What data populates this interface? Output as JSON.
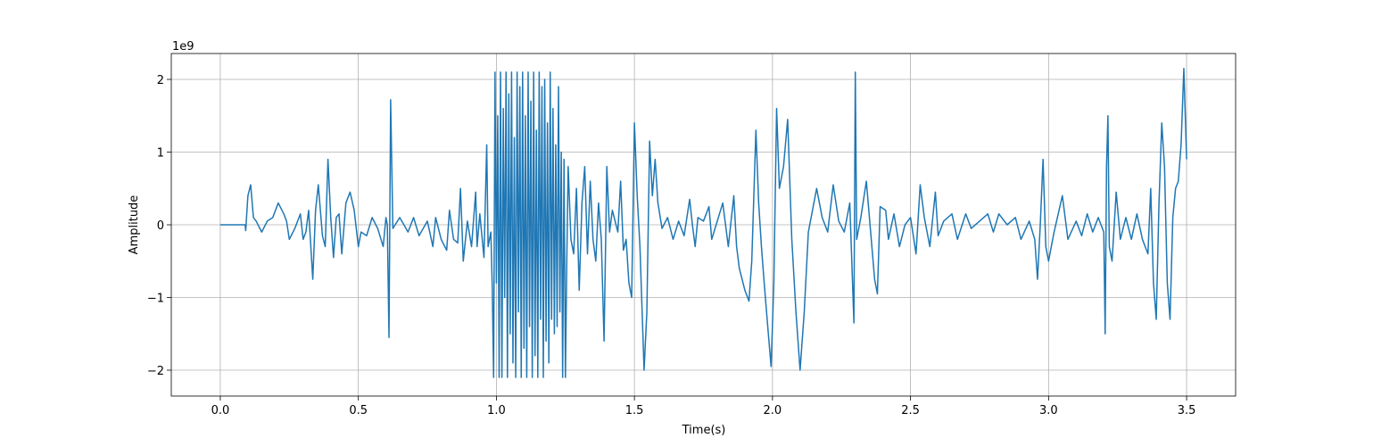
{
  "chart_data": {
    "type": "line",
    "x_label": "Time(s)",
    "y_label": "Amplitude",
    "y_offset_label": "1e9",
    "color": "#1f77b4",
    "grid": true,
    "xlim": [
      -0.1775,
      3.6775
    ],
    "ylim": [
      -2.356,
      2.356
    ],
    "xticks": [
      {
        "value": 0,
        "label": "0.0"
      },
      0.5,
      {
        "value": 1,
        "label": "1.0"
      },
      1.5,
      {
        "value": 2,
        "label": "2.0"
      },
      2.5,
      {
        "value": 3,
        "label": "3.0"
      },
      3.5
    ],
    "yticks": [
      {
        "value": -2,
        "label": "−2"
      },
      {
        "value": -1,
        "label": "−1"
      },
      0,
      1,
      2
    ],
    "x": [
      0,
      0.09,
      0.092,
      0.1,
      0.11,
      0.12,
      0.13,
      0.15,
      0.17,
      0.19,
      0.21,
      0.23,
      0.24,
      0.25,
      0.27,
      0.29,
      0.3,
      0.31,
      0.32,
      0.335,
      0.345,
      0.355,
      0.37,
      0.38,
      0.39,
      0.4,
      0.41,
      0.42,
      0.43,
      0.44,
      0.455,
      0.47,
      0.485,
      0.5,
      0.51,
      0.53,
      0.55,
      0.57,
      0.59,
      0.6,
      0.605,
      0.611,
      0.617,
      0.625,
      0.65,
      0.68,
      0.7,
      0.72,
      0.75,
      0.77,
      0.78,
      0.8,
      0.82,
      0.83,
      0.845,
      0.86,
      0.87,
      0.88,
      0.895,
      0.91,
      0.925,
      0.93,
      0.94,
      0.955,
      0.965,
      0.97,
      0.98,
      0.985,
      0.99,
      0.995,
      1.0,
      1.005,
      1.01,
      1.015,
      1.02,
      1.025,
      1.03,
      1.035,
      1.04,
      1.045,
      1.05,
      1.055,
      1.06,
      1.065,
      1.07,
      1.075,
      1.08,
      1.085,
      1.09,
      1.095,
      1.1,
      1.105,
      1.11,
      1.115,
      1.12,
      1.125,
      1.13,
      1.135,
      1.14,
      1.145,
      1.15,
      1.155,
      1.16,
      1.165,
      1.17,
      1.175,
      1.18,
      1.185,
      1.19,
      1.195,
      1.2,
      1.205,
      1.21,
      1.215,
      1.22,
      1.225,
      1.23,
      1.235,
      1.24,
      1.245,
      1.25,
      1.255,
      1.26,
      1.27,
      1.28,
      1.29,
      1.3,
      1.31,
      1.32,
      1.33,
      1.34,
      1.35,
      1.36,
      1.37,
      1.38,
      1.39,
      1.4,
      1.41,
      1.42,
      1.44,
      1.45,
      1.46,
      1.47,
      1.48,
      1.49,
      1.5,
      1.51,
      1.52,
      1.535,
      1.545,
      1.555,
      1.565,
      1.575,
      1.585,
      1.6,
      1.62,
      1.64,
      1.66,
      1.68,
      1.7,
      1.71,
      1.72,
      1.73,
      1.75,
      1.77,
      1.78,
      1.8,
      1.82,
      1.84,
      1.86,
      1.87,
      1.88,
      1.9,
      1.915,
      1.925,
      1.94,
      1.95,
      1.96,
      1.97,
      1.985,
      1.995,
      2.005,
      2.015,
      2.025,
      2.04,
      2.055,
      2.07,
      2.085,
      2.1,
      2.115,
      2.13,
      2.145,
      2.16,
      2.18,
      2.2,
      2.22,
      2.24,
      2.26,
      2.28,
      2.295,
      2.3,
      2.305,
      2.32,
      2.34,
      2.36,
      2.37,
      2.38,
      2.39,
      2.41,
      2.42,
      2.44,
      2.46,
      2.48,
      2.5,
      2.52,
      2.535,
      2.55,
      2.57,
      2.59,
      2.6,
      2.62,
      2.65,
      2.67,
      2.7,
      2.72,
      2.75,
      2.78,
      2.8,
      2.82,
      2.85,
      2.88,
      2.9,
      2.93,
      2.95,
      2.96,
      2.97,
      2.98,
      2.99,
      3.0,
      3.02,
      3.05,
      3.07,
      3.1,
      3.12,
      3.14,
      3.16,
      3.18,
      3.2,
      3.205,
      3.21,
      3.215,
      3.22,
      3.23,
      3.245,
      3.26,
      3.28,
      3.3,
      3.32,
      3.34,
      3.36,
      3.37,
      3.38,
      3.39,
      3.4,
      3.41,
      3.42,
      3.43,
      3.44,
      3.45,
      3.46,
      3.47,
      3.48,
      3.49,
      3.5
    ],
    "values": [
      0,
      0,
      -0.08,
      0.4,
      0.55,
      0.1,
      0.05,
      -0.1,
      0.05,
      0.1,
      0.3,
      0.15,
      0.05,
      -0.2,
      -0.05,
      0.15,
      -0.2,
      -0.1,
      0.2,
      -0.75,
      0.2,
      0.55,
      -0.15,
      -0.3,
      0.9,
      0.1,
      -0.45,
      0.1,
      0.15,
      -0.4,
      0.3,
      0.45,
      0.2,
      -0.3,
      -0.1,
      -0.15,
      0.1,
      -0.05,
      -0.3,
      0.1,
      0,
      -1.55,
      1.72,
      -0.05,
      0.1,
      -0.1,
      0.1,
      -0.15,
      0.05,
      -0.3,
      0.1,
      -0.2,
      -0.35,
      0.2,
      -0.2,
      -0.25,
      0.5,
      -0.5,
      0.05,
      -0.3,
      0.45,
      -0.3,
      0.15,
      -0.45,
      1.1,
      -0.3,
      -0.1,
      -0.85,
      -2.1,
      2.1,
      -0.8,
      1.5,
      -2.1,
      2.1,
      -2.1,
      1.6,
      -1,
      2.1,
      -2.1,
      1.8,
      -1.5,
      2.1,
      -1.9,
      1.2,
      -2.1,
      2.1,
      -1.2,
      1.9,
      -2.1,
      2.1,
      -1.7,
      1.5,
      -2.1,
      2.1,
      -1.4,
      1.7,
      -2.1,
      2.1,
      -1.8,
      1.3,
      -2.1,
      2.1,
      -1.3,
      1.9,
      -2.1,
      2,
      -1.6,
      1.4,
      -1.9,
      2.1,
      -1.3,
      1.6,
      -1.5,
      1.1,
      -1.4,
      1.9,
      -1.2,
      1,
      -2.1,
      0.9,
      -2.1,
      -0.5,
      0.8,
      -0.2,
      -0.4,
      0.5,
      -0.9,
      0.3,
      0.8,
      -0.4,
      0.6,
      -0.2,
      -0.5,
      0.3,
      -0.2,
      -1.6,
      0.8,
      -0.1,
      0.2,
      -0.1,
      0.6,
      -0.35,
      -0.2,
      -0.8,
      -1,
      1.4,
      0.4,
      -0.3,
      -2,
      -1.2,
      1.15,
      0.4,
      0.9,
      0.3,
      -0.05,
      0.1,
      -0.2,
      0.05,
      -0.15,
      0.35,
      0,
      -0.3,
      0.1,
      0.05,
      0.25,
      -0.2,
      0.05,
      0.3,
      -0.3,
      0.4,
      -0.3,
      -0.6,
      -0.9,
      -1.05,
      -0.5,
      1.3,
      0.3,
      -0.3,
      -0.8,
      -1.5,
      -1.95,
      -0.8,
      1.6,
      0.5,
      0.8,
      1.45,
      -0.2,
      -1.2,
      -2,
      -1.2,
      -0.1,
      0.2,
      0.5,
      0.1,
      -0.1,
      0.55,
      0.05,
      -0.1,
      0.3,
      -1.35,
      2.1,
      -0.2,
      0.1,
      0.6,
      -0.3,
      -0.75,
      -0.95,
      0.25,
      0.2,
      -0.2,
      0.15,
      -0.3,
      0,
      0.1,
      -0.4,
      0.55,
      0.1,
      -0.3,
      0.45,
      -0.15,
      0.05,
      0.15,
      -0.2,
      0.15,
      -0.05,
      0.05,
      0.15,
      -0.1,
      0.15,
      0,
      0.1,
      -0.2,
      0.05,
      -0.2,
      -0.75,
      0,
      0.9,
      -0.3,
      -0.5,
      -0.1,
      0.4,
      -0.2,
      0.05,
      -0.15,
      0.15,
      -0.1,
      0.1,
      -0.1,
      -1.5,
      0.8,
      1.5,
      -0.3,
      -0.5,
      0.45,
      -0.2,
      0.1,
      -0.2,
      0.15,
      -0.2,
      -0.4,
      0.5,
      -0.8,
      -1.3,
      0.3,
      1.4,
      0.8,
      -0.8,
      -1.3,
      0.1,
      0.5,
      0.6,
      1.1,
      2.15,
      0.9
    ]
  }
}
